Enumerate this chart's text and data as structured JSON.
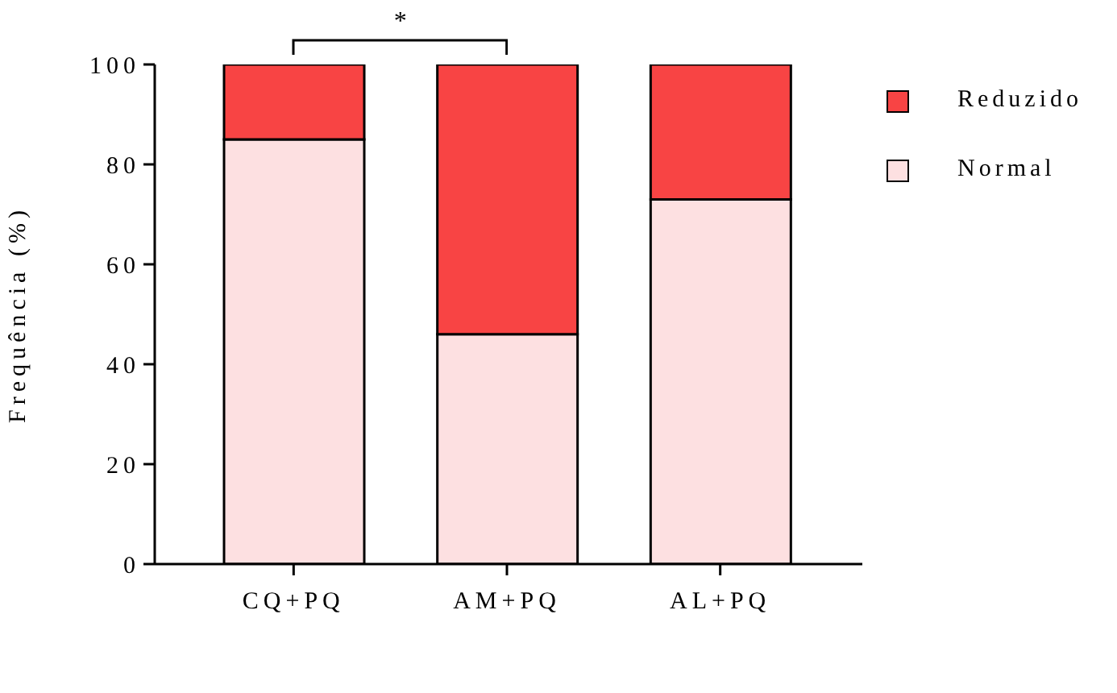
{
  "chart_data": {
    "type": "bar",
    "stacked": true,
    "ylabel": "Frequência (%)",
    "categories": [
      "CQ+PQ",
      "AM+PQ",
      "AL+PQ"
    ],
    "series": [
      {
        "name": "Normal",
        "color": "#fde0e1",
        "values": [
          85,
          46,
          73
        ]
      },
      {
        "name": "Reduzido",
        "color": "#f84444",
        "values": [
          15,
          54,
          27
        ]
      }
    ],
    "ylim": [
      0,
      100
    ],
    "yticks": [
      0,
      20,
      40,
      60,
      80,
      100
    ],
    "grid": false,
    "legend": "top right",
    "annotations": [
      "*"
    ]
  }
}
